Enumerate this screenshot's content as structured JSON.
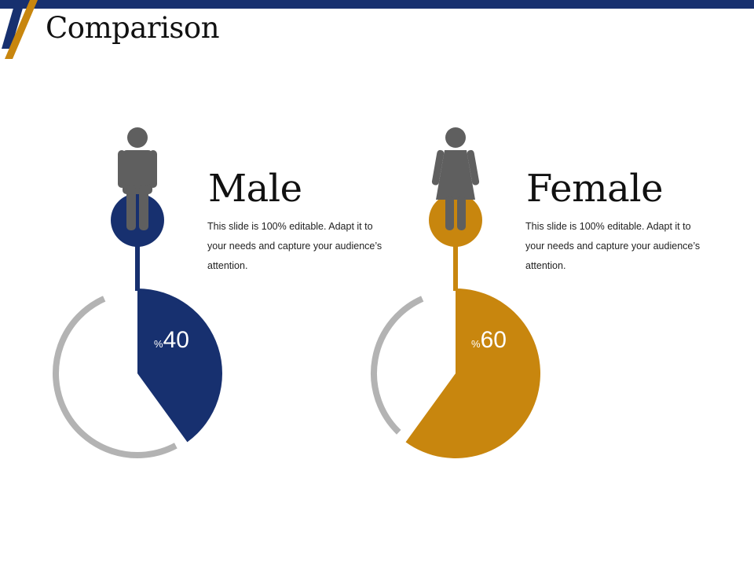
{
  "slide": {
    "title": "Comparison"
  },
  "colors": {
    "navy": "#17306f",
    "gold": "#c8860e",
    "gray": "#b3b3b3",
    "figure": "#5f5f5f"
  },
  "panels": [
    {
      "heading": "Male",
      "description": "This slide is 100% editable. Adapt it to your needs and capture your audience’s attention.",
      "percent_symbol": "%",
      "percent_value": "40",
      "fraction": 0.4,
      "color": "#17306f",
      "icon": "male-person-icon"
    },
    {
      "heading": "Female",
      "description": "This slide is 100% editable. Adapt it to your needs and capture your audience’s attention.",
      "percent_symbol": "%",
      "percent_value": "60",
      "fraction": 0.6,
      "color": "#c8860e",
      "icon": "female-person-icon"
    }
  ]
}
